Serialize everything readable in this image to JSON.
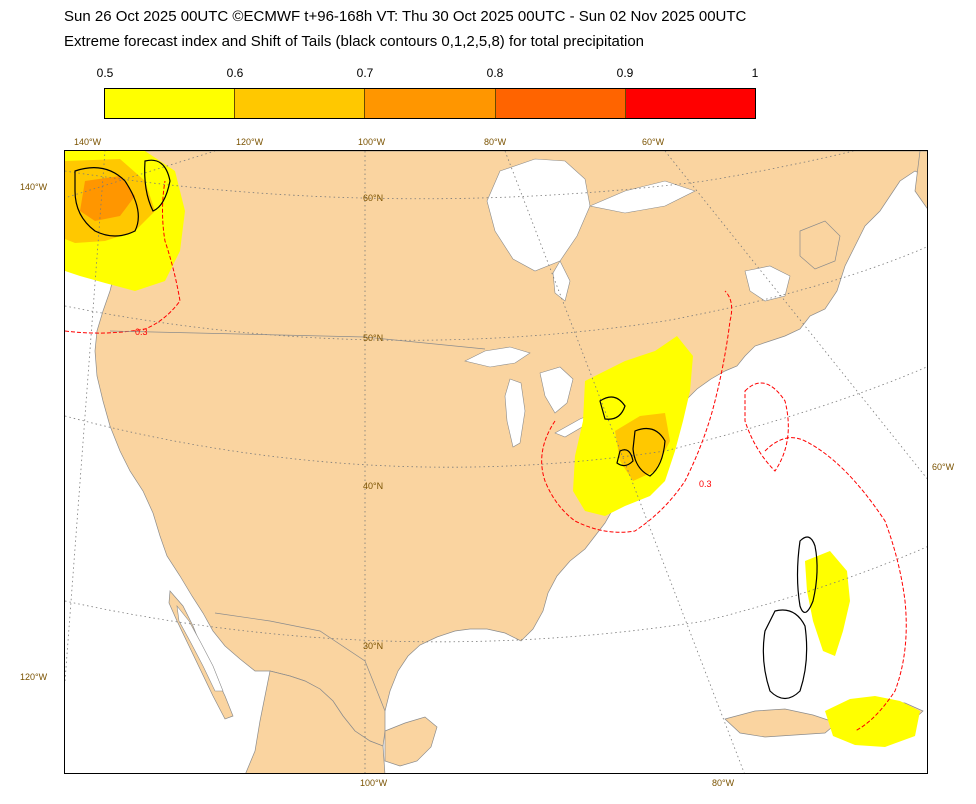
{
  "header": {
    "line1": "Sun 26 Oct 2025 00UTC ©ECMWF t+96-168h  VT: Thu 30 Oct 2025 00UTC - Sun 02 Nov 2025 00UTC",
    "line2": "Extreme forecast index and Shift of Tails (black contours 0,1,2,5,8) for total precipitation"
  },
  "legend": {
    "ticks": [
      "0.5",
      "0.6",
      "0.7",
      "0.8",
      "0.9",
      "1"
    ],
    "colors": [
      "#ffff00",
      "#ffc800",
      "#ff9600",
      "#ff6400",
      "#ff0000"
    ]
  },
  "map": {
    "land_color": "#fad4a0",
    "sea_color": "#ffffff",
    "efi_contour_label": "0.3",
    "labels": {
      "lon_140w_top": "140°W",
      "lon_120w_top": "120°W",
      "lon_100w_top": "100°W",
      "lon_80w_top": "80°W",
      "lon_60w_top": "60°W",
      "lon_140w_left": "140°W",
      "lon_120w_left": "120°W",
      "lon_60w_right": "60°W",
      "lon_100w_bottom": "100°W",
      "lon_80w_bottom": "80°W",
      "lat_60n": "60°N",
      "lat_50n": "50°N",
      "lat_40n": "40°N",
      "lat_30n": "30°N"
    }
  }
}
